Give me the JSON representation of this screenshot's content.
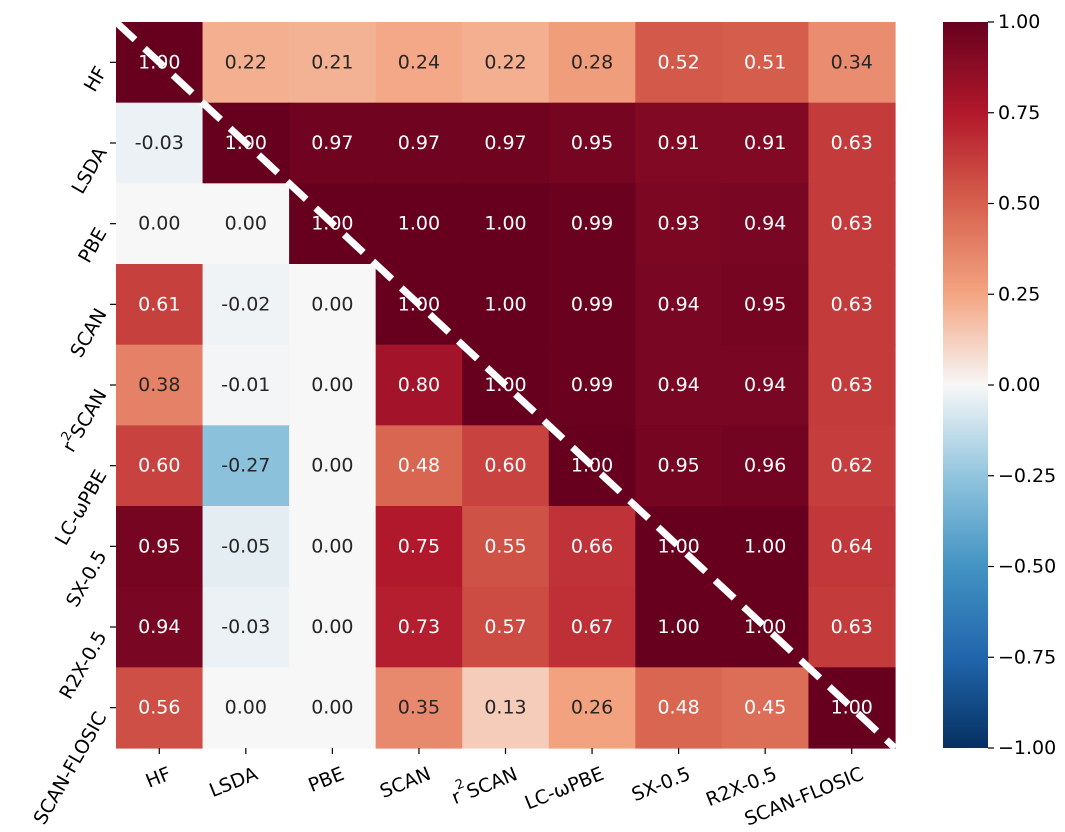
{
  "chart_data": {
    "type": "heatmap",
    "title": "",
    "xlabel": "",
    "ylabel": "",
    "rows": [
      "HF",
      "LSDA",
      "PBE",
      "SCAN",
      "r2SCAN",
      "LC-ωPBE",
      "SX-0.5",
      "R2X-0.5",
      "SCAN-FLOSIC"
    ],
    "columns": [
      "HF",
      "LSDA",
      "PBE",
      "SCAN",
      "r2SCAN",
      "LC-ωPBE",
      "SX-0.5",
      "R2X-0.5",
      "SCAN-FLOSIC"
    ],
    "values": [
      [
        1.0,
        0.22,
        0.21,
        0.24,
        0.22,
        0.28,
        0.52,
        0.51,
        0.34
      ],
      [
        -0.03,
        1.0,
        0.97,
        0.97,
        0.97,
        0.95,
        0.91,
        0.91,
        0.63
      ],
      [
        0.0,
        0.0,
        1.0,
        1.0,
        1.0,
        0.99,
        0.93,
        0.94,
        0.63
      ],
      [
        0.61,
        -0.02,
        0.0,
        1.0,
        1.0,
        0.99,
        0.94,
        0.95,
        0.63
      ],
      [
        0.38,
        -0.01,
        0.0,
        0.8,
        1.0,
        0.99,
        0.94,
        0.94,
        0.63
      ],
      [
        0.6,
        -0.27,
        0.0,
        0.48,
        0.6,
        1.0,
        0.95,
        0.96,
        0.62
      ],
      [
        0.95,
        -0.05,
        0.0,
        0.75,
        0.55,
        0.66,
        1.0,
        1.0,
        0.64
      ],
      [
        0.94,
        -0.03,
        0.0,
        0.73,
        0.57,
        0.67,
        1.0,
        1.0,
        0.63
      ],
      [
        0.56,
        0.0,
        0.0,
        0.35,
        0.13,
        0.26,
        0.48,
        0.45,
        1.0
      ]
    ],
    "color_scale": {
      "colormap": "RdBu_r",
      "min": -1.0,
      "max": 1.0,
      "ticks": [
        "1.00",
        "0.75",
        "0.50",
        "0.25",
        "0.00",
        "−0.25",
        "−0.50",
        "−0.75",
        "−1.00"
      ]
    },
    "diagonal_line": {
      "style": "dashed",
      "color": "#ffffff"
    },
    "value_format": "2 decimals",
    "grid": false,
    "legend": "colorbar-right"
  }
}
